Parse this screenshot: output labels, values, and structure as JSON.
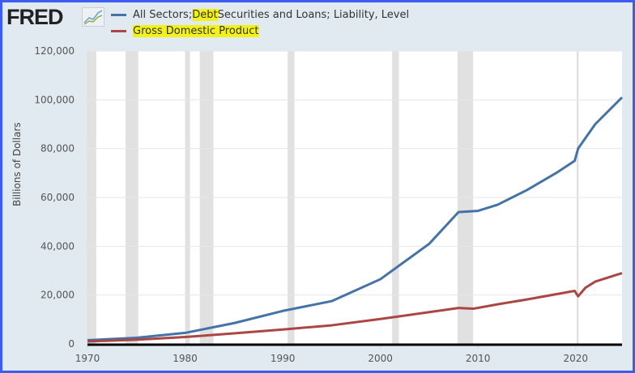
{
  "header": {
    "logo": "FRED",
    "logo_icon": "chart-line-icon"
  },
  "chart_data": {
    "type": "line",
    "title": "",
    "xlabel": "",
    "ylabel": "Billions of Dollars",
    "xlim": [
      1970,
      2024.75
    ],
    "ylim": [
      0,
      120000
    ],
    "xticks": [
      "1970",
      "1980",
      "1990",
      "2000",
      "2010",
      "2020"
    ],
    "yticks": [
      "0",
      "20,000",
      "40,000",
      "60,000",
      "80,000",
      "100,000",
      "120,000"
    ],
    "grid": true,
    "legend_position": "top-left",
    "legend": [
      {
        "prefix": "All Sectors; ",
        "highlight": "Debt",
        "suffix": " Securities and Loans; Liability, Level",
        "color": "#4572a7"
      },
      {
        "prefix": "",
        "highlight": "Gross Domestic Product",
        "suffix": "",
        "color": "#aa4643"
      }
    ],
    "recessions": [
      [
        1969.9,
        1970.9
      ],
      [
        1973.9,
        1975.2
      ],
      [
        1980.0,
        1980.5
      ],
      [
        1981.5,
        1982.9
      ],
      [
        1990.5,
        1991.2
      ],
      [
        2001.2,
        2001.9
      ],
      [
        2007.9,
        2009.5
      ],
      [
        2020.1,
        2020.3
      ]
    ],
    "series": [
      {
        "name": "All Sectors; Debt Securities and Loans; Liability, Level",
        "color": "#4572a7",
        "x": [
          1970,
          1975,
          1980,
          1985,
          1990,
          1995,
          2000,
          2005,
          2008,
          2010,
          2012,
          2015,
          2018,
          2019.9,
          2020.25,
          2022,
          2024.75
        ],
        "y": [
          1500,
          2500,
          4500,
          8500,
          13500,
          17500,
          26500,
          41000,
          54000,
          54500,
          57000,
          63000,
          70000,
          75000,
          80000,
          90000,
          101000
        ]
      },
      {
        "name": "Gross Domestic Product",
        "color": "#aa4643",
        "x": [
          1970,
          1975,
          1980,
          1985,
          1990,
          1995,
          2000,
          2005,
          2008,
          2009.5,
          2012,
          2015,
          2019.9,
          2020.25,
          2021,
          2022,
          2024.75
        ],
        "y": [
          1000,
          1700,
          2800,
          4300,
          5900,
          7600,
          10200,
          13000,
          14700,
          14400,
          16200,
          18200,
          21700,
          19500,
          23000,
          25500,
          29000
        ]
      }
    ]
  }
}
